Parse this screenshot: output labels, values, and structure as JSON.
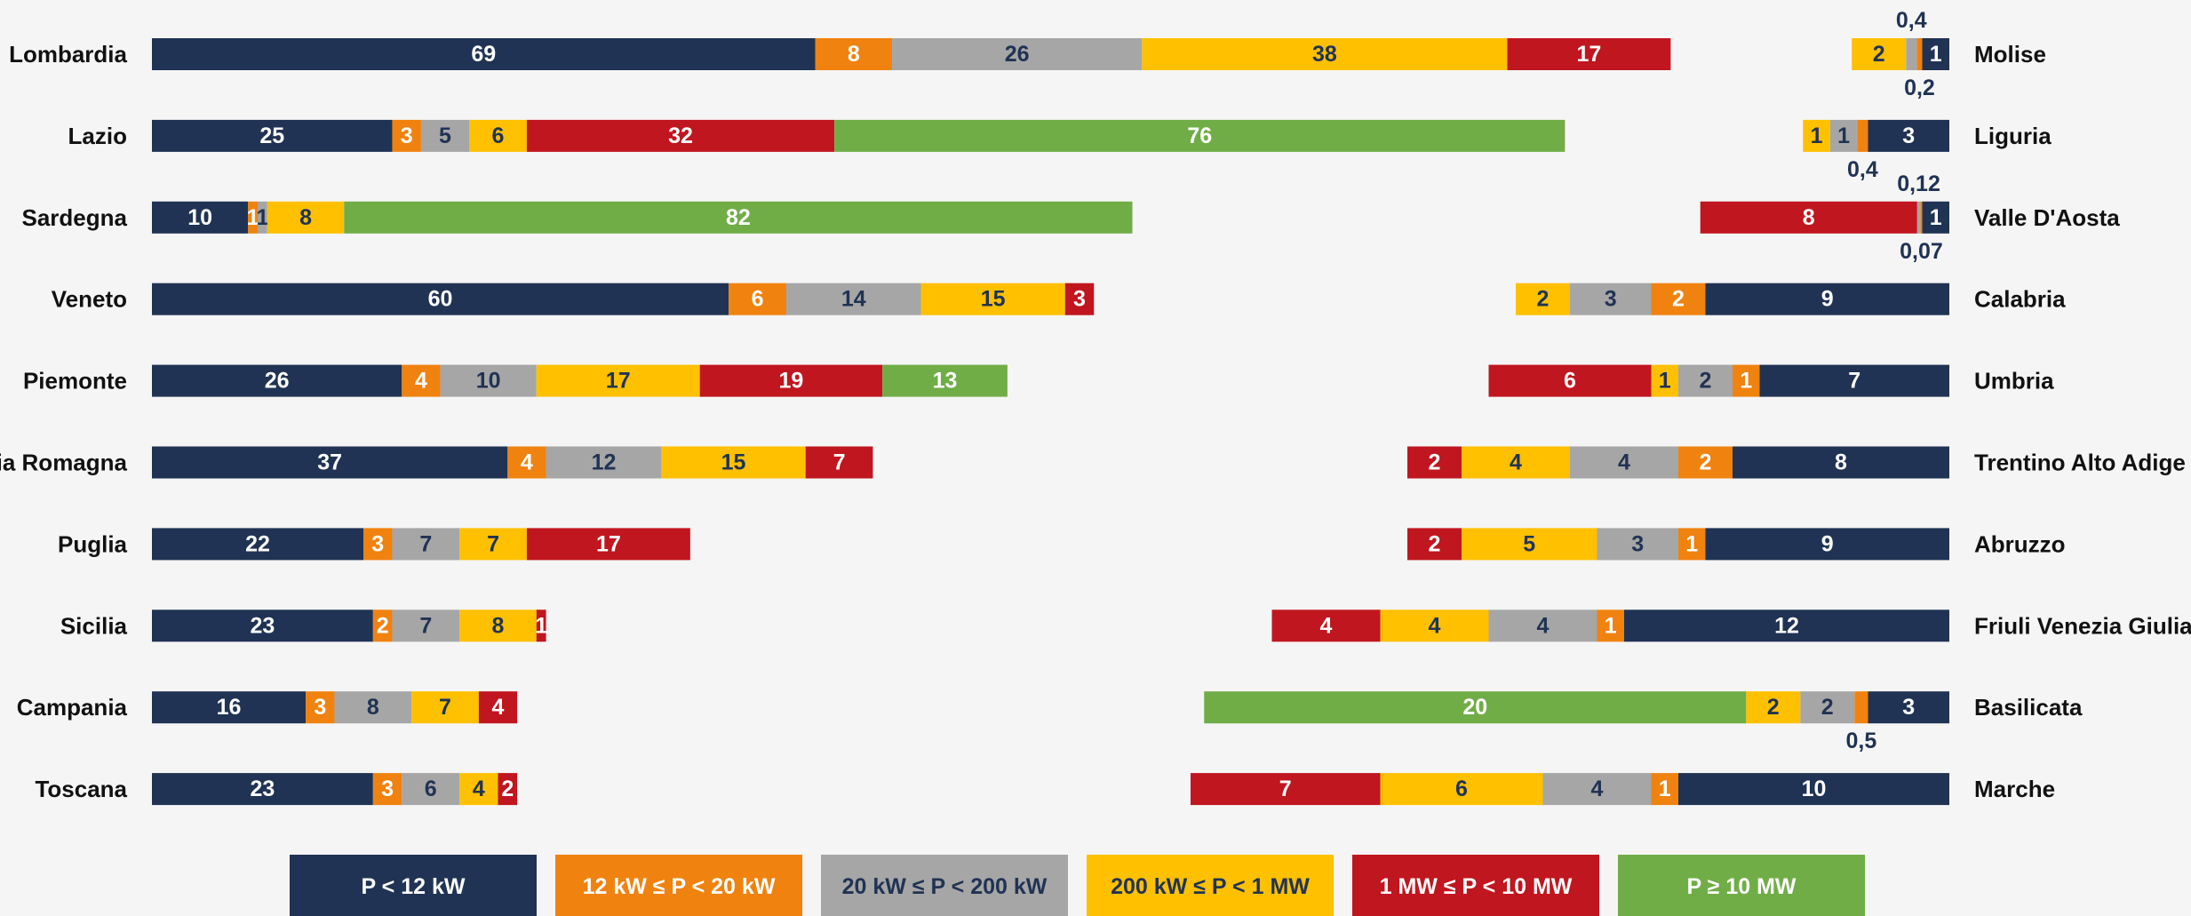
{
  "chart_data": [
    {
      "type": "stacked-bar",
      "categories": [
        "Lombardia",
        "Lazio",
        "Sardegna",
        "Veneto",
        "Piemonte",
        "Emilia Romagna",
        "Puglia",
        "Sicilia",
        "Campania",
        "Toscana"
      ],
      "xlim": [
        0,
        160
      ],
      "series": [
        {
          "name": "P < 12 kW",
          "color": "#203354",
          "values": [
            69,
            25,
            10,
            60,
            26,
            37,
            22,
            23,
            16,
            23
          ]
        },
        {
          "name": "12 kW ≤ P < 20 kW",
          "color": "#f0820f",
          "values": [
            8,
            3,
            1,
            6,
            4,
            4,
            3,
            2,
            3,
            3
          ]
        },
        {
          "name": "20 kW ≤ P < 200 kW",
          "color": "#a6a6a6",
          "values": [
            26,
            5,
            1,
            14,
            10,
            12,
            7,
            7,
            8,
            6
          ]
        },
        {
          "name": "200 kW ≤ P < 1 MW",
          "color": "#ffc000",
          "values": [
            38,
            6,
            8,
            15,
            17,
            15,
            7,
            8,
            7,
            4
          ]
        },
        {
          "name": "1 MW ≤ P  < 10 MW",
          "color": "#c0161f",
          "values": [
            17,
            32,
            null,
            3,
            19,
            7,
            17,
            1,
            4,
            2
          ]
        },
        {
          "name": "P ≥ 10 MW",
          "color": "#70ad47",
          "values": [
            null,
            76,
            82,
            null,
            13,
            null,
            null,
            null,
            null,
            null
          ]
        }
      ]
    },
    {
      "type": "stacked-bar",
      "categories": [
        "Molise",
        "Liguria",
        "Valle D'Aosta",
        "Calabria",
        "Umbria",
        "Trentino Alto Adige",
        "Abruzzo",
        "Friuli Venezia Giulia",
        "Basilicata",
        "Marche"
      ],
      "xlim": [
        0,
        30
      ],
      "series": [
        {
          "color": "#203354",
          "values": [
            1,
            3,
            1,
            9,
            7,
            8,
            9,
            12,
            3,
            10
          ]
        },
        {
          "color": "#f0820f",
          "values": [
            0.2,
            0.4,
            0.07,
            2,
            1,
            2,
            1,
            1,
            0.5,
            1
          ],
          "value_labels": [
            "0,2",
            "0,4",
            "0,07",
            "2",
            "1",
            "2",
            "1",
            "1",
            "0,5",
            "1"
          ]
        },
        {
          "color": "#a6a6a6",
          "values": [
            0.4,
            1,
            0.12,
            3,
            2,
            4,
            3,
            4,
            2,
            4
          ],
          "value_labels": [
            "0,4",
            "1",
            "0,12",
            "3",
            "2",
            "4",
            "3",
            "4",
            "2",
            "4"
          ]
        },
        {
          "color": "#ffc000",
          "values": [
            2,
            1,
            null,
            2,
            1,
            4,
            5,
            4,
            2,
            6
          ]
        },
        {
          "color": "#c0161f",
          "values": [
            null,
            null,
            8,
            null,
            6,
            2,
            2,
            4,
            null,
            7
          ]
        },
        {
          "color": "#70ad47",
          "values": [
            null,
            null,
            null,
            null,
            null,
            null,
            null,
            null,
            20,
            null
          ]
        }
      ]
    }
  ]
}
